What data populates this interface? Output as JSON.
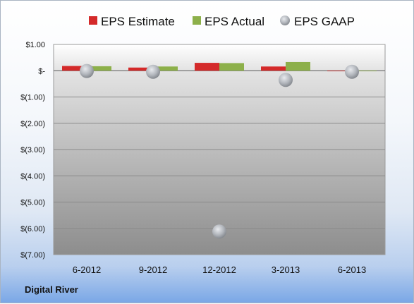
{
  "company": "Digital River",
  "colors": {
    "estimate": "#d42a2a",
    "actual": "#8db04a",
    "gaap": "#b8bcc2"
  },
  "chart_data": {
    "type": "bar",
    "categories": [
      "6-2012",
      "9-2012",
      "12-2012",
      "3-2013",
      "6-2013"
    ],
    "series": [
      {
        "name": "EPS Estimate",
        "kind": "bar",
        "values": [
          0.18,
          0.12,
          0.3,
          0.16,
          -0.02
        ]
      },
      {
        "name": "EPS Actual",
        "kind": "bar",
        "values": [
          0.17,
          0.16,
          0.29,
          0.33,
          -0.01
        ]
      },
      {
        "name": "EPS GAAP",
        "kind": "scatter",
        "values": [
          -0.01,
          -0.04,
          -6.12,
          -0.35,
          -0.04
        ]
      }
    ],
    "y_ticks": [
      "$1.00",
      "$-",
      "$(1.00)",
      "$(2.00)",
      "$(3.00)",
      "$(4.00)",
      "$(5.00)",
      "$(6.00)",
      "$(7.00)"
    ],
    "ylim": [
      -7,
      1
    ],
    "grid": true,
    "legend": "top"
  }
}
